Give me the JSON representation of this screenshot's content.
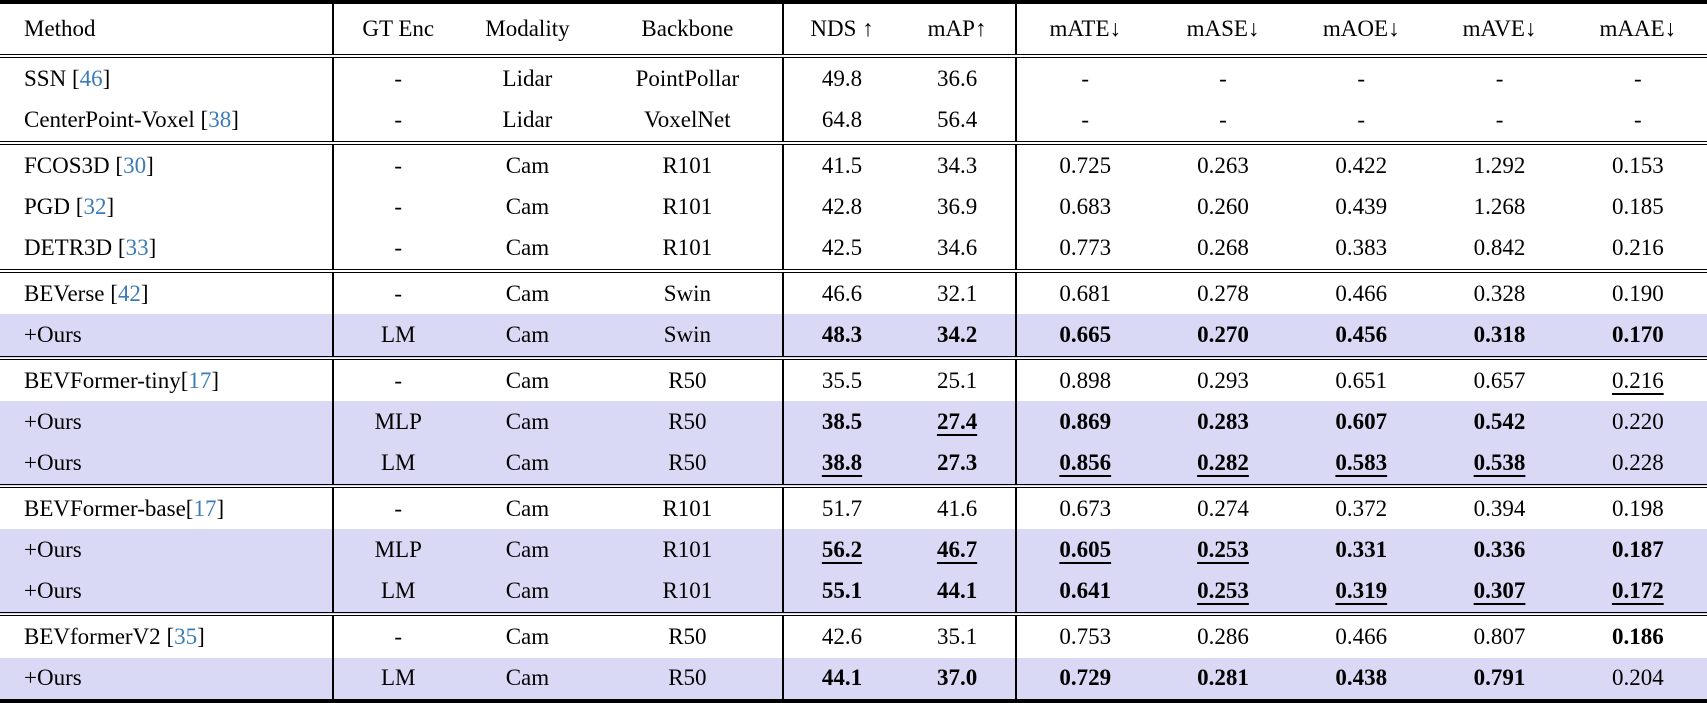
{
  "table": {
    "title": "3D object detection results table",
    "highlight_color": "#d9d9f5",
    "citation_color": "#3c7bb7",
    "columns": [
      "Method",
      "GT Enc",
      "Modality",
      "Backbone",
      "NDS ↑",
      "mAP↑",
      "mATE↓",
      "mASE↓",
      "mAOE↓",
      "mAVE↓",
      "mAAE↓"
    ],
    "groups": [
      {
        "rows": [
          {
            "method": "SSN",
            "cite": "46",
            "gap": true,
            "highlight": false,
            "cells": [
              {
                "v": "-"
              },
              {
                "v": "Lidar"
              },
              {
                "v": "PointPollar"
              },
              {
                "v": "49.8"
              },
              {
                "v": "36.6"
              },
              {
                "v": "-"
              },
              {
                "v": "-"
              },
              {
                "v": "-"
              },
              {
                "v": "-"
              },
              {
                "v": "-"
              }
            ]
          },
          {
            "method": "CenterPoint-Voxel",
            "cite": "38",
            "gap": true,
            "highlight": false,
            "cells": [
              {
                "v": "-"
              },
              {
                "v": "Lidar"
              },
              {
                "v": "VoxelNet"
              },
              {
                "v": "64.8"
              },
              {
                "v": "56.4"
              },
              {
                "v": "-"
              },
              {
                "v": "-"
              },
              {
                "v": "-"
              },
              {
                "v": "-"
              },
              {
                "v": "-"
              }
            ]
          }
        ]
      },
      {
        "rows": [
          {
            "method": "FCOS3D",
            "cite": "30",
            "gap": true,
            "highlight": false,
            "cells": [
              {
                "v": "-"
              },
              {
                "v": "Cam"
              },
              {
                "v": "R101"
              },
              {
                "v": "41.5"
              },
              {
                "v": "34.3"
              },
              {
                "v": "0.725"
              },
              {
                "v": "0.263"
              },
              {
                "v": "0.422"
              },
              {
                "v": "1.292"
              },
              {
                "v": "0.153"
              }
            ]
          },
          {
            "method": "PGD",
            "cite": "32",
            "gap": true,
            "highlight": false,
            "cells": [
              {
                "v": "-"
              },
              {
                "v": "Cam"
              },
              {
                "v": "R101"
              },
              {
                "v": "42.8"
              },
              {
                "v": "36.9"
              },
              {
                "v": "0.683"
              },
              {
                "v": "0.260"
              },
              {
                "v": "0.439"
              },
              {
                "v": "1.268"
              },
              {
                "v": "0.185"
              }
            ]
          },
          {
            "method": "DETR3D",
            "cite": "33",
            "gap": true,
            "highlight": false,
            "cells": [
              {
                "v": "-"
              },
              {
                "v": "Cam"
              },
              {
                "v": "R101"
              },
              {
                "v": "42.5"
              },
              {
                "v": "34.6"
              },
              {
                "v": "0.773"
              },
              {
                "v": "0.268"
              },
              {
                "v": "0.383"
              },
              {
                "v": "0.842"
              },
              {
                "v": "0.216"
              }
            ]
          }
        ]
      },
      {
        "rows": [
          {
            "method": "BEVerse",
            "cite": "42",
            "gap": true,
            "highlight": false,
            "cells": [
              {
                "v": "-"
              },
              {
                "v": "Cam"
              },
              {
                "v": "Swin"
              },
              {
                "v": "46.6"
              },
              {
                "v": "32.1"
              },
              {
                "v": "0.681"
              },
              {
                "v": "0.278"
              },
              {
                "v": "0.466"
              },
              {
                "v": "0.328"
              },
              {
                "v": "0.190"
              }
            ]
          },
          {
            "method": "+Ours",
            "cite": null,
            "gap": false,
            "highlight": true,
            "cells": [
              {
                "v": "LM"
              },
              {
                "v": "Cam"
              },
              {
                "v": "Swin"
              },
              {
                "v": "48.3",
                "b": true
              },
              {
                "v": "34.2",
                "b": true
              },
              {
                "v": "0.665",
                "b": true
              },
              {
                "v": "0.270",
                "b": true
              },
              {
                "v": "0.456",
                "b": true
              },
              {
                "v": "0.318",
                "b": true
              },
              {
                "v": "0.170",
                "b": true
              }
            ]
          }
        ]
      },
      {
        "rows": [
          {
            "method": "BEVFormer-tiny",
            "cite": "17",
            "gap": false,
            "highlight": false,
            "cells": [
              {
                "v": "-"
              },
              {
                "v": "Cam"
              },
              {
                "v": "R50"
              },
              {
                "v": "35.5"
              },
              {
                "v": "25.1"
              },
              {
                "v": "0.898"
              },
              {
                "v": "0.293"
              },
              {
                "v": "0.651"
              },
              {
                "v": "0.657"
              },
              {
                "v": "0.216",
                "u": true
              }
            ]
          },
          {
            "method": "+Ours",
            "cite": null,
            "gap": false,
            "highlight": true,
            "cells": [
              {
                "v": "MLP"
              },
              {
                "v": "Cam"
              },
              {
                "v": "R50"
              },
              {
                "v": "38.5",
                "b": true
              },
              {
                "v": "27.4",
                "b": true,
                "u": true
              },
              {
                "v": "0.869",
                "b": true
              },
              {
                "v": "0.283",
                "b": true
              },
              {
                "v": "0.607",
                "b": true
              },
              {
                "v": "0.542",
                "b": true
              },
              {
                "v": "0.220"
              }
            ]
          },
          {
            "method": "+Ours",
            "cite": null,
            "gap": false,
            "highlight": true,
            "cells": [
              {
                "v": "LM"
              },
              {
                "v": "Cam"
              },
              {
                "v": "R50"
              },
              {
                "v": "38.8",
                "b": true,
                "u": true
              },
              {
                "v": "27.3",
                "b": true
              },
              {
                "v": "0.856",
                "b": true,
                "u": true
              },
              {
                "v": "0.282",
                "b": true,
                "u": true
              },
              {
                "v": "0.583",
                "b": true,
                "u": true
              },
              {
                "v": "0.538",
                "b": true,
                "u": true
              },
              {
                "v": "0.228"
              }
            ]
          }
        ]
      },
      {
        "rows": [
          {
            "method": "BEVFormer-base",
            "cite": "17",
            "gap": false,
            "highlight": false,
            "cells": [
              {
                "v": "-"
              },
              {
                "v": "Cam"
              },
              {
                "v": "R101"
              },
              {
                "v": "51.7"
              },
              {
                "v": "41.6"
              },
              {
                "v": "0.673"
              },
              {
                "v": "0.274"
              },
              {
                "v": "0.372"
              },
              {
                "v": "0.394"
              },
              {
                "v": "0.198"
              }
            ]
          },
          {
            "method": "+Ours",
            "cite": null,
            "gap": false,
            "highlight": true,
            "cells": [
              {
                "v": "MLP"
              },
              {
                "v": "Cam"
              },
              {
                "v": "R101"
              },
              {
                "v": "56.2",
                "b": true,
                "u": true
              },
              {
                "v": "46.7",
                "b": true,
                "u": true
              },
              {
                "v": "0.605",
                "b": true,
                "u": true
              },
              {
                "v": "0.253",
                "b": true,
                "u": true
              },
              {
                "v": "0.331",
                "b": true
              },
              {
                "v": "0.336",
                "b": true
              },
              {
                "v": "0.187",
                "b": true
              }
            ]
          },
          {
            "method": "+Ours",
            "cite": null,
            "gap": false,
            "highlight": true,
            "cells": [
              {
                "v": "LM"
              },
              {
                "v": "Cam"
              },
              {
                "v": "R101"
              },
              {
                "v": "55.1",
                "b": true
              },
              {
                "v": "44.1",
                "b": true
              },
              {
                "v": "0.641",
                "b": true
              },
              {
                "v": "0.253",
                "b": true,
                "u": true
              },
              {
                "v": "0.319",
                "b": true,
                "u": true
              },
              {
                "v": "0.307",
                "b": true,
                "u": true
              },
              {
                "v": "0.172",
                "b": true,
                "u": true
              }
            ]
          }
        ]
      },
      {
        "rows": [
          {
            "method": "BEVformerV2",
            "cite": "35",
            "gap": true,
            "highlight": false,
            "cells": [
              {
                "v": "-"
              },
              {
                "v": "Cam"
              },
              {
                "v": "R50"
              },
              {
                "v": "42.6"
              },
              {
                "v": "35.1"
              },
              {
                "v": "0.753"
              },
              {
                "v": "0.286"
              },
              {
                "v": "0.466"
              },
              {
                "v": "0.807"
              },
              {
                "v": "0.186",
                "b": true
              }
            ]
          },
          {
            "method": "+Ours",
            "cite": null,
            "gap": false,
            "highlight": true,
            "cells": [
              {
                "v": "LM"
              },
              {
                "v": "Cam"
              },
              {
                "v": "R50"
              },
              {
                "v": "44.1",
                "b": true
              },
              {
                "v": "37.0",
                "b": true
              },
              {
                "v": "0.729",
                "b": true
              },
              {
                "v": "0.281",
                "b": true
              },
              {
                "v": "0.438",
                "b": true
              },
              {
                "v": "0.791",
                "b": true
              },
              {
                "v": "0.204"
              }
            ]
          }
        ]
      }
    ]
  }
}
